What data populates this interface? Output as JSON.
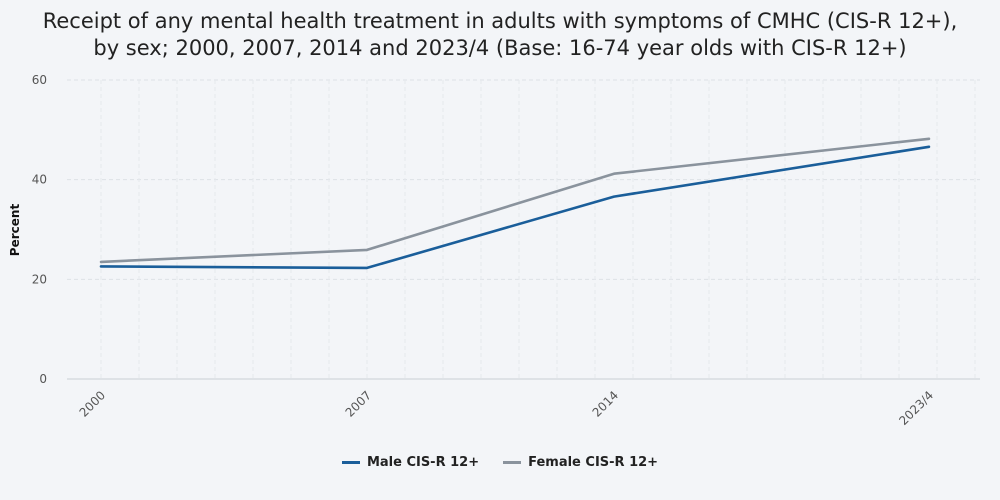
{
  "chart_data": {
    "type": "line",
    "title_lines": [
      "Receipt of any mental health treatment in adults with symptoms of CMHC (CIS-R 12+),",
      "by sex; 2000, 2007, 2014 and 2023/4 (Base: 16-74 year olds with CIS-R 12+)"
    ],
    "x": [
      "2000",
      "2007",
      "2014",
      "2023/4"
    ],
    "ylabel": "Percent",
    "ylim": [
      0,
      60
    ],
    "yticks": [
      0,
      20,
      40,
      60
    ],
    "grid": true,
    "legend_position": "bottom",
    "series": [
      {
        "name": "Male CIS-R 12+",
        "color": "#1a5e9a",
        "values": [
          22.6,
          22.3,
          36.6,
          46.6
        ]
      },
      {
        "name": "Female CIS-R 12+",
        "color": "#8a939d",
        "values": [
          23.5,
          25.9,
          41.2,
          48.2
        ]
      }
    ]
  }
}
